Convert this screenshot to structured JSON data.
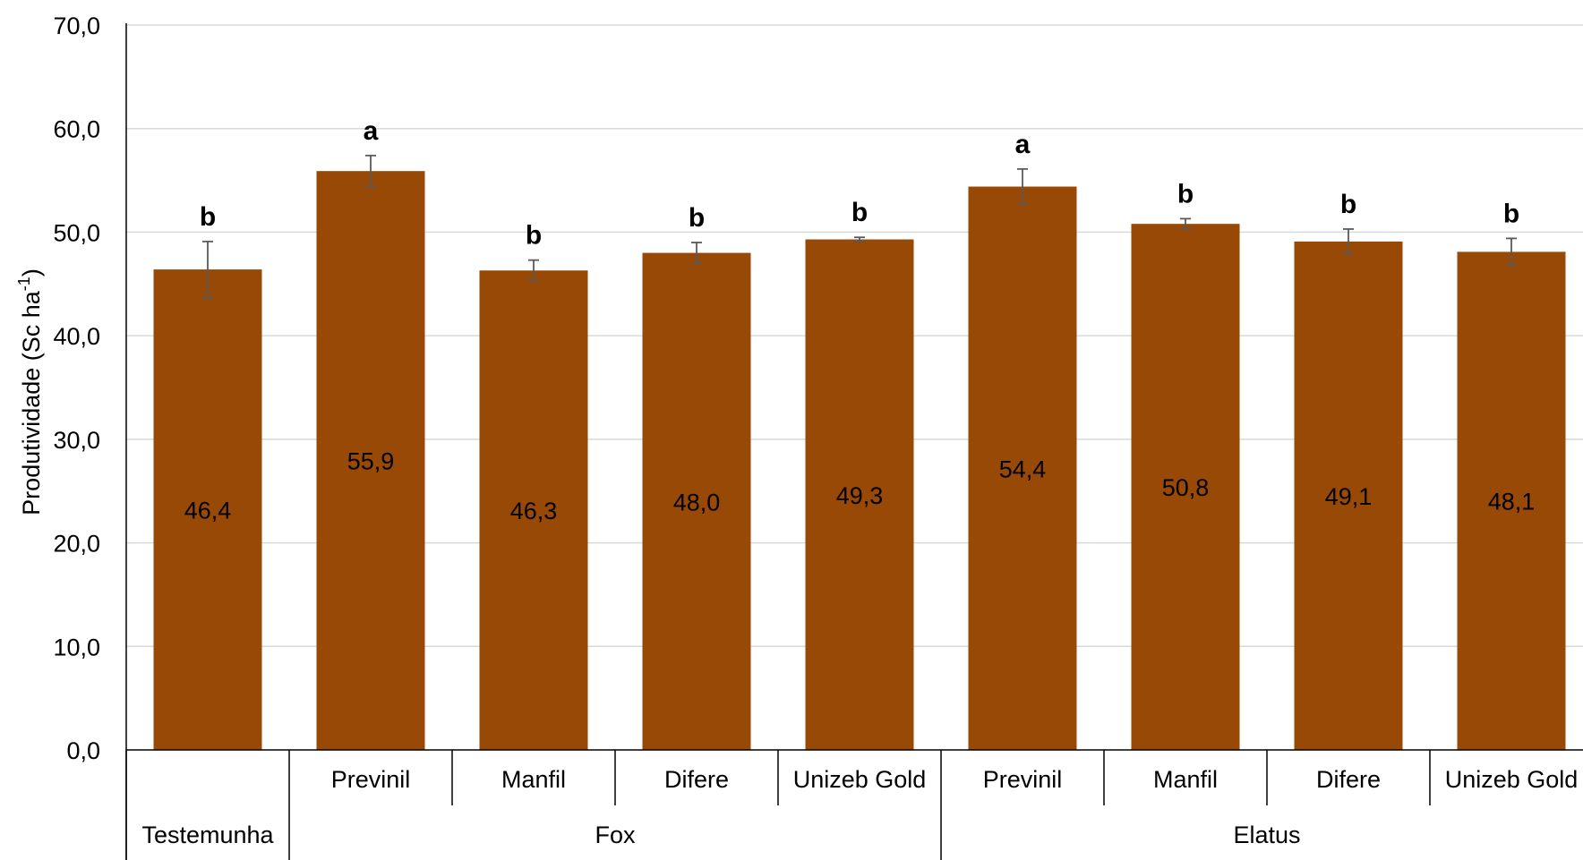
{
  "chart_data": {
    "type": "bar",
    "categories": [
      {
        "label": "Testemunha",
        "group": ""
      },
      {
        "label": "Previnil",
        "group": "Fox"
      },
      {
        "label": "Manfil",
        "group": "Fox"
      },
      {
        "label": "Difere",
        "group": "Fox"
      },
      {
        "label": "Unizeb Gold",
        "group": "Fox"
      },
      {
        "label": "Previnil",
        "group": "Elatus"
      },
      {
        "label": "Manfil",
        "group": "Elatus"
      },
      {
        "label": "Difere",
        "group": "Elatus"
      },
      {
        "label": "Unizeb Gold",
        "group": "Elatus"
      }
    ],
    "groups": [
      "Testemunha",
      "Fox",
      "Elatus"
    ],
    "values": [
      46.4,
      55.9,
      46.3,
      48.0,
      49.3,
      54.4,
      50.8,
      49.1,
      48.1
    ],
    "value_labels": [
      "46,4",
      "55,9",
      "46,3",
      "48,0",
      "49,3",
      "54,4",
      "50,8",
      "49,1",
      "48,1"
    ],
    "errors": [
      2.7,
      1.5,
      1.0,
      1.0,
      0.2,
      1.7,
      0.5,
      1.2,
      1.3
    ],
    "letters": [
      "b",
      "a",
      "b",
      "b",
      "b",
      "a",
      "b",
      "b",
      "b"
    ],
    "ylabel_main": "Produtividade (Sc ha",
    "ylabel_sup": "-1",
    "ylabel_close": ")",
    "ylim": [
      0,
      70
    ],
    "y_ticks": [
      0,
      10,
      20,
      30,
      40,
      50,
      60,
      70
    ],
    "y_tick_labels": [
      "0,0",
      "10,0",
      "20,0",
      "30,0",
      "40,0",
      "50,0",
      "60,0",
      "70,0"
    ],
    "grid": true,
    "bar_color": "#994906",
    "grid_color": "#d9d9d9",
    "error_color": "#595959"
  }
}
